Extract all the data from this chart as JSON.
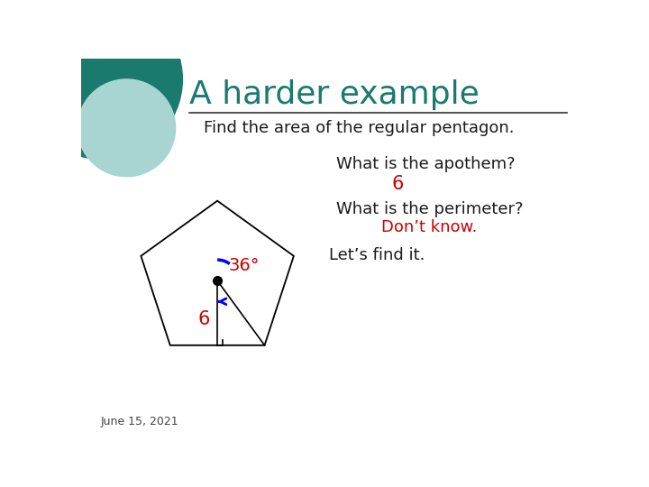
{
  "title": "A harder example",
  "title_color": "#1a7a6e",
  "bg_color": "#ffffff",
  "subtitle": "Find the area of the regular pentagon.",
  "q1": "What is the apothem?",
  "a1": "6",
  "q2": "What is the perimeter?",
  "a2": "Don’t know.",
  "a3": "Let’s find it.",
  "answer_color": "#cc0000",
  "text_color": "#1a1a1a",
  "date_text": "June 15, 2021",
  "circle_color": "#1a7a6e",
  "circle_light_color": "#a8d5d1",
  "pentagon_color": "#000000",
  "angle_label": "36°",
  "apothem_label": "6"
}
